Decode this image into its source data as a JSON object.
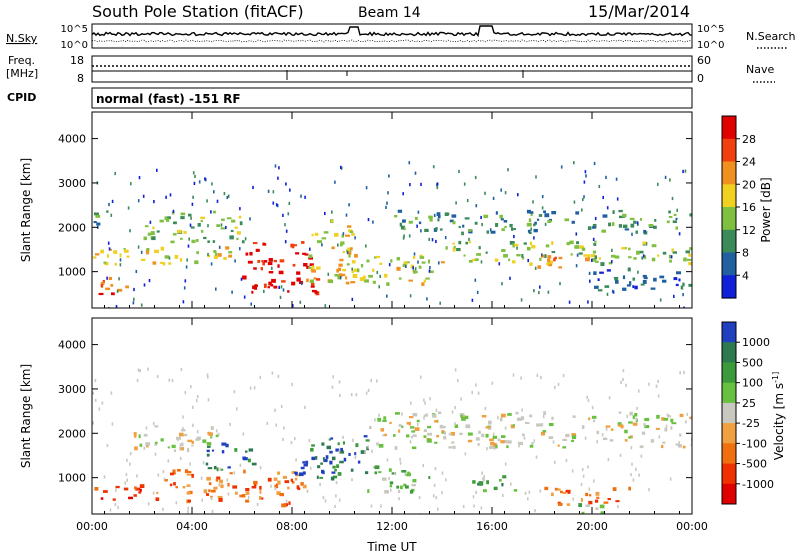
{
  "header": {
    "station": "South Pole Station (fitACF)",
    "beam": "Beam 14",
    "date": "15/Mar/2014"
  },
  "top_panel": {
    "left_label": "N.Sky",
    "right_label": "N.Search",
    "left_ticks": [
      "10^5",
      "10^0"
    ],
    "right_ticks": [
      "10^5",
      "10^0"
    ]
  },
  "freq_panel": {
    "left_label_1": "Freq.",
    "left_label_2": "[MHz]",
    "right_label": "Nave",
    "left_ticks": [
      "18",
      "8"
    ],
    "right_ticks": [
      "60",
      "0"
    ]
  },
  "cpid": {
    "label": "CPID",
    "mode_text": "normal (fast) -151 RF"
  },
  "chart_data": [
    {
      "type": "heatmap",
      "quantity": "Power",
      "ylabel": "Slant Range [km]",
      "xlabel": "",
      "ylim": [
        180,
        4600
      ],
      "xlim": [
        0,
        24
      ],
      "y_ticks": [
        "1000",
        "2000",
        "3000",
        "4000"
      ],
      "colorbar_label": "Power [dB]",
      "colorbar_ticks": [
        "4",
        "8",
        "12",
        "16",
        "20",
        "24",
        "28"
      ],
      "colors": [
        "#1020d8",
        "#2060a0",
        "#3a8a5a",
        "#80c040",
        "#f0d020",
        "#f09020",
        "#f04010",
        "#e00000"
      ],
      "regions": [
        {
          "t0": 0.0,
          "t1": 1.5,
          "r0": 500,
          "r1": 900,
          "level": 6
        },
        {
          "t0": 0.0,
          "t1": 5.5,
          "r0": 1200,
          "r1": 1600,
          "level": 4
        },
        {
          "t0": 0.0,
          "t1": 0.6,
          "r0": 1900,
          "r1": 2500,
          "level": 2
        },
        {
          "t0": 2.0,
          "t1": 6.0,
          "r0": 1700,
          "r1": 2400,
          "level": 3
        },
        {
          "t0": 6.0,
          "t1": 9.0,
          "r0": 550,
          "r1": 1700,
          "level": 7
        },
        {
          "t0": 8.5,
          "t1": 10.5,
          "r0": 800,
          "r1": 2200,
          "level": 4
        },
        {
          "t0": 10.0,
          "t1": 14.0,
          "r0": 750,
          "r1": 1400,
          "level": 4
        },
        {
          "t0": 12.0,
          "t1": 24.0,
          "r0": 1900,
          "r1": 2400,
          "level": 2
        },
        {
          "t0": 14.0,
          "t1": 24.0,
          "r0": 1200,
          "r1": 1700,
          "level": 3
        },
        {
          "t0": 17.5,
          "t1": 20.0,
          "r0": 1100,
          "r1": 1400,
          "level": 5
        },
        {
          "t0": 20.0,
          "t1": 24.0,
          "r0": 600,
          "r1": 1100,
          "level": 1
        }
      ]
    },
    {
      "type": "heatmap",
      "quantity": "Velocity",
      "ylabel": "Slant Range [km]",
      "xlabel": "Time UT",
      "ylim": [
        180,
        4600
      ],
      "xlim": [
        0,
        24
      ],
      "y_ticks": [
        "1000",
        "2000",
        "3000",
        "4000"
      ],
      "x_ticks": [
        "00:00",
        "04:00",
        "08:00",
        "12:00",
        "16:00",
        "20:00",
        "00:00"
      ],
      "colorbar_label": "Velocity [m s^-1]",
      "colorbar_ticks": [
        "1000",
        "500",
        "100",
        "25",
        "-25",
        "-100",
        "-500",
        "-1000"
      ],
      "colors": [
        "#2040c0",
        "#2e7a50",
        "#3c9a3c",
        "#68c040",
        "#c8c8c0",
        "#f0a040",
        "#f07010",
        "#f03000",
        "#e00000"
      ],
      "regions": [
        {
          "t0": 0.0,
          "t1": 2.0,
          "r0": 500,
          "r1": 900,
          "level": 7
        },
        {
          "t0": 1.5,
          "t1": 5.0,
          "r0": 1600,
          "r1": 2200,
          "level": 4
        },
        {
          "t0": 2.5,
          "t1": 6.5,
          "r0": 500,
          "r1": 1200,
          "level": 6
        },
        {
          "t0": 4.5,
          "t1": 6.5,
          "r0": 1200,
          "r1": 1800,
          "level": 1
        },
        {
          "t0": 6.5,
          "t1": 8.5,
          "r0": 400,
          "r1": 1200,
          "level": 6
        },
        {
          "t0": 8.0,
          "t1": 9.5,
          "r0": 1100,
          "r1": 1500,
          "level": 0
        },
        {
          "t0": 8.5,
          "t1": 11.0,
          "r0": 1000,
          "r1": 2000,
          "level": 1
        },
        {
          "t0": 11.0,
          "t1": 13.5,
          "r0": 700,
          "r1": 1300,
          "level": 3
        },
        {
          "t0": 11.0,
          "t1": 24.0,
          "r0": 1700,
          "r1": 2500,
          "level": 4
        },
        {
          "t0": 15.0,
          "t1": 17.0,
          "r0": 700,
          "r1": 1100,
          "level": 2
        },
        {
          "t0": 18.0,
          "t1": 21.5,
          "r0": 400,
          "r1": 800,
          "level": 6
        },
        {
          "t0": 19.0,
          "t1": 20.5,
          "r0": 200,
          "r1": 450,
          "level": 3
        }
      ]
    }
  ]
}
